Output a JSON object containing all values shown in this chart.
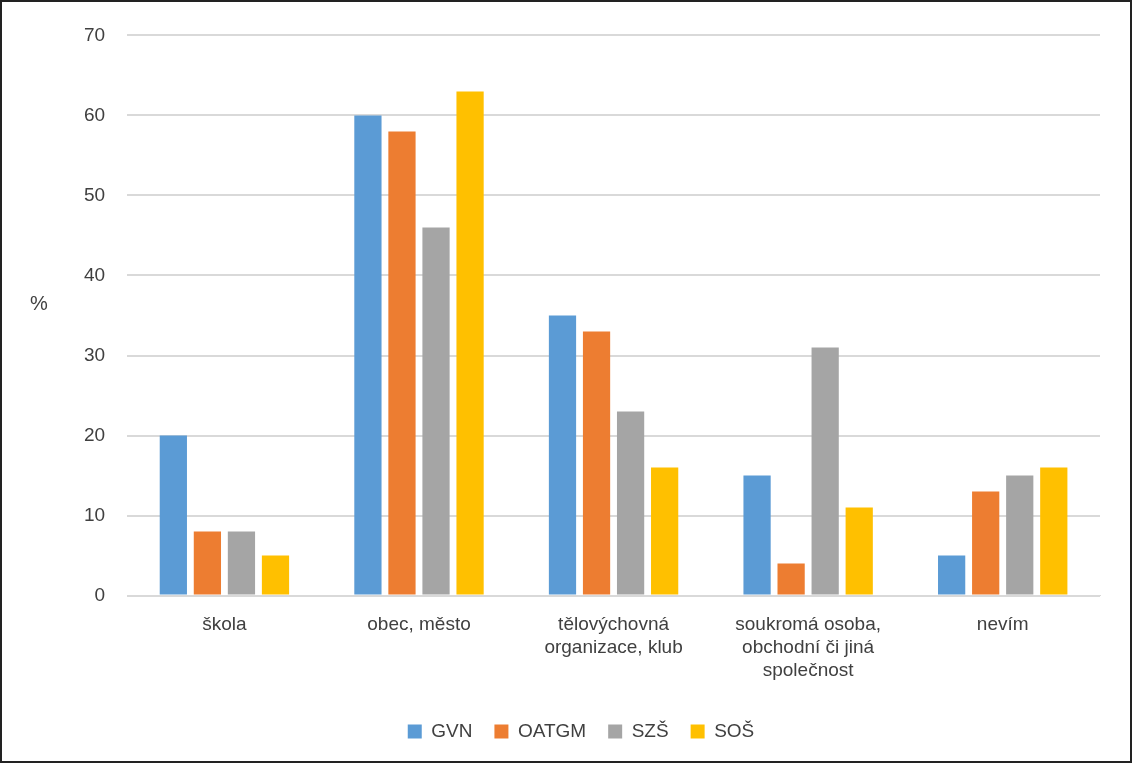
{
  "chart_data": {
    "type": "bar",
    "ylabel": "%",
    "categories": [
      "škola",
      "obec, město",
      "tělovýchovná organizace, klub",
      "soukromá osoba, obchodní či jiná společnost",
      "nevím"
    ],
    "series": [
      {
        "name": "GVN",
        "color": "#5b9bd5",
        "values": [
          20,
          60,
          35,
          15,
          5
        ]
      },
      {
        "name": "OATGM",
        "color": "#ed7d31",
        "values": [
          8,
          58,
          33,
          4,
          13
        ]
      },
      {
        "name": "SZŠ",
        "color": "#a5a5a5",
        "values": [
          8,
          46,
          23,
          31,
          15
        ]
      },
      {
        "name": "SOŠ",
        "color": "#ffc000",
        "values": [
          5,
          63,
          16,
          11,
          16
        ]
      }
    ],
    "ylim": [
      0,
      70
    ],
    "yticks": [
      0,
      10,
      20,
      30,
      40,
      50,
      60,
      70
    ],
    "grid": "y",
    "legend": "bottom"
  }
}
